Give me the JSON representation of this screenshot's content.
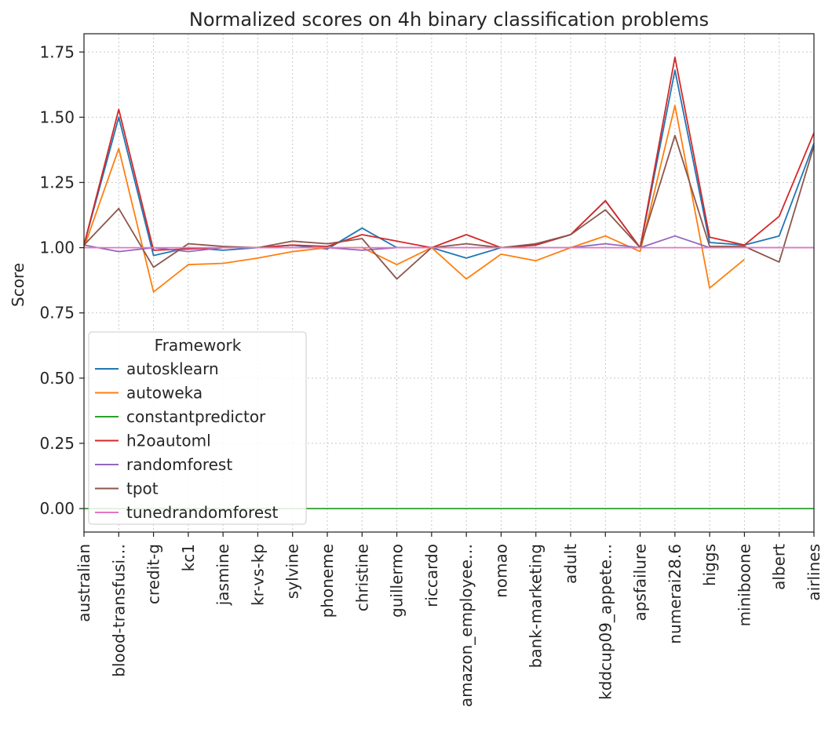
{
  "chart_data": {
    "type": "line",
    "title": "Normalized scores on 4h binary classification problems",
    "xlabel": "",
    "ylabel": "Score",
    "ylim": [
      -0.09,
      1.82
    ],
    "yticks": [
      0.0,
      0.25,
      0.5,
      0.75,
      1.0,
      1.25,
      1.5,
      1.75
    ],
    "ytick_labels": [
      "0.00",
      "0.25",
      "0.50",
      "0.75",
      "1.00",
      "1.25",
      "1.50",
      "1.75"
    ],
    "grid": true,
    "legend_title": "Framework",
    "legend_position": "lower-left",
    "categories": [
      "australian",
      "blood-transfusi…",
      "credit-g",
      "kc1",
      "jasmine",
      "kr-vs-kp",
      "sylvine",
      "phoneme",
      "christine",
      "guillermo",
      "riccardo",
      "amazon_employee…",
      "nomao",
      "bank-marketing",
      "adult",
      "kddcup09_appete…",
      "apsfailure",
      "numerai28.6",
      "higgs",
      "miniboone",
      "albert",
      "airlines"
    ],
    "series": [
      {
        "name": "autosklearn",
        "color": "#1f77b4",
        "values": [
          1.01,
          1.5,
          0.97,
          1.0,
          0.99,
          1.0,
          1.01,
          0.995,
          1.075,
          1.0,
          1.0,
          0.96,
          1.0,
          1.01,
          1.05,
          1.18,
          1.0,
          1.68,
          1.02,
          1.01,
          1.045,
          1.4
        ]
      },
      {
        "name": "autoweka",
        "color": "#ff7f0e",
        "values": [
          1.0,
          1.38,
          0.83,
          0.935,
          0.94,
          0.96,
          0.985,
          1.0,
          1.0,
          0.935,
          1.0,
          0.88,
          0.975,
          0.95,
          1.0,
          1.045,
          0.985,
          1.545,
          0.845,
          0.955,
          null,
          null
        ]
      },
      {
        "name": "constantpredictor",
        "color": "#2ca02c",
        "values": [
          0.0,
          0.0,
          0.0,
          0.0,
          0.0,
          0.0,
          0.0,
          0.0,
          0.0,
          0.0,
          0.0,
          0.0,
          0.0,
          0.0,
          0.0,
          0.0,
          0.0,
          0.0,
          0.0,
          0.0,
          0.0,
          0.0
        ]
      },
      {
        "name": "h2oautoml",
        "color": "#d62728",
        "values": [
          1.01,
          1.53,
          0.99,
          0.995,
          1.0,
          1.0,
          1.01,
          1.005,
          1.05,
          1.025,
          1.0,
          1.05,
          1.0,
          1.01,
          1.05,
          1.18,
          1.0,
          1.73,
          1.04,
          1.01,
          1.12,
          1.44
        ]
      },
      {
        "name": "randomforest",
        "color": "#9467bd",
        "values": [
          1.01,
          0.985,
          1.0,
          0.985,
          1.0,
          1.0,
          1.0,
          1.0,
          0.99,
          1.0,
          1.0,
          1.0,
          1.0,
          1.0,
          1.0,
          1.015,
          1.0,
          1.045,
          1.0,
          1.0,
          1.0,
          1.0
        ]
      },
      {
        "name": "tpot",
        "color": "#8c564b",
        "values": [
          1.01,
          1.15,
          0.925,
          1.015,
          1.005,
          1.0,
          1.025,
          1.015,
          1.035,
          0.88,
          1.0,
          1.015,
          1.0,
          1.015,
          1.05,
          1.145,
          1.0,
          1.43,
          1.005,
          1.005,
          0.945,
          1.39
        ]
      },
      {
        "name": "tunedrandomforest",
        "color": "#e377c2",
        "values": [
          1.0,
          1.0,
          1.0,
          1.0,
          1.0,
          1.0,
          1.0,
          1.0,
          1.0,
          1.0,
          1.0,
          1.0,
          1.0,
          1.0,
          1.0,
          1.0,
          1.0,
          1.0,
          1.0,
          1.0,
          1.0,
          1.0
        ]
      }
    ]
  }
}
